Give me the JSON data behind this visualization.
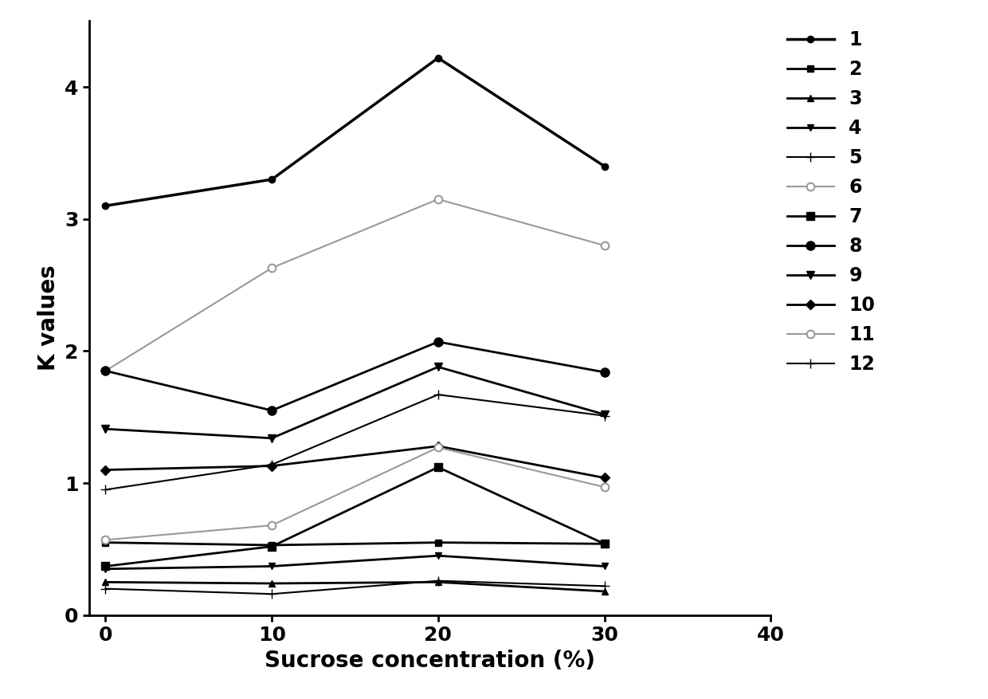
{
  "x": [
    0,
    10,
    20,
    30
  ],
  "series": [
    {
      "label": "1",
      "values": [
        3.1,
        3.3,
        4.22,
        3.4
      ],
      "color": "#000000",
      "lw": 2.5,
      "marker": "o",
      "ms": 6,
      "linestyle": "-",
      "gray": false,
      "mfc": "black"
    },
    {
      "label": "2",
      "values": [
        0.55,
        0.53,
        0.55,
        0.54
      ],
      "color": "#000000",
      "lw": 2.0,
      "marker": "s",
      "ms": 6,
      "linestyle": "-",
      "gray": false,
      "mfc": "black"
    },
    {
      "label": "3",
      "values": [
        0.25,
        0.24,
        0.25,
        0.18
      ],
      "color": "#000000",
      "lw": 2.0,
      "marker": "^",
      "ms": 6,
      "linestyle": "-",
      "gray": false,
      "mfc": "black"
    },
    {
      "label": "4",
      "values": [
        0.35,
        0.37,
        0.45,
        0.37
      ],
      "color": "#000000",
      "lw": 2.0,
      "marker": "v",
      "ms": 6,
      "linestyle": "-",
      "gray": false,
      "mfc": "black"
    },
    {
      "label": "5",
      "values": [
        0.2,
        0.16,
        0.26,
        0.22
      ],
      "color": "#000000",
      "lw": 1.5,
      "marker": "+",
      "ms": 8,
      "linestyle": "-",
      "gray": false,
      "mfc": "black"
    },
    {
      "label": "6",
      "values": [
        1.85,
        2.63,
        3.15,
        2.8
      ],
      "color": "#999999",
      "lw": 1.5,
      "marker": "o",
      "ms": 7,
      "linestyle": "-",
      "gray": true,
      "mfc": "white"
    },
    {
      "label": "7",
      "values": [
        0.37,
        0.52,
        1.12,
        0.54
      ],
      "color": "#000000",
      "lw": 2.0,
      "marker": "s",
      "ms": 7,
      "linestyle": "-",
      "gray": false,
      "mfc": "black"
    },
    {
      "label": "8",
      "values": [
        1.85,
        1.55,
        2.07,
        1.84
      ],
      "color": "#000000",
      "lw": 2.0,
      "marker": "o",
      "ms": 8,
      "linestyle": "-",
      "gray": false,
      "mfc": "black"
    },
    {
      "label": "9",
      "values": [
        1.41,
        1.34,
        1.88,
        1.52
      ],
      "color": "#000000",
      "lw": 2.0,
      "marker": "v",
      "ms": 7,
      "linestyle": "-",
      "gray": false,
      "mfc": "black"
    },
    {
      "label": "10",
      "values": [
        1.1,
        1.13,
        1.28,
        1.04
      ],
      "color": "#000000",
      "lw": 2.0,
      "marker": "D",
      "ms": 6,
      "linestyle": "-",
      "gray": false,
      "mfc": "black"
    },
    {
      "label": "11",
      "values": [
        0.57,
        0.68,
        1.27,
        0.97
      ],
      "color": "#999999",
      "lw": 1.5,
      "marker": "o",
      "ms": 7,
      "linestyle": "-",
      "gray": true,
      "mfc": "white"
    },
    {
      "label": "12",
      "values": [
        0.95,
        1.14,
        1.67,
        1.51
      ],
      "color": "#000000",
      "lw": 1.5,
      "marker": "+",
      "ms": 8,
      "linestyle": "-",
      "gray": false,
      "mfc": "black"
    }
  ],
  "xlabel": "Sucrose concentration (%)",
  "ylabel": "K values",
  "xlim": [
    -1,
    40
  ],
  "ylim": [
    0,
    4.5
  ],
  "xticks": [
    0,
    10,
    20,
    30,
    40
  ],
  "yticks": [
    0,
    1,
    2,
    3,
    4
  ],
  "legend_fontsize": 17,
  "axis_label_fontsize": 20,
  "tick_fontsize": 18,
  "figsize": [
    12.4,
    8.77
  ],
  "dpi": 100
}
